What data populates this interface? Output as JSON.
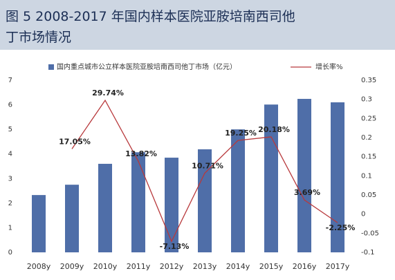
{
  "chart_data": {
    "type": "bar_line",
    "title": "图 5  2008-2017 年国内样本医院亚胺培南西司他丁市场情况",
    "categories": [
      "2008y",
      "2009y",
      "2010y",
      "2011y",
      "2012y",
      "2013y",
      "2014y",
      "2015y",
      "2016y",
      "2017y"
    ],
    "series": [
      {
        "name": "国内重点城市公立样本医院亚胺培南西司他丁市场（亿元）",
        "type": "bar",
        "color": "#4f6ea8",
        "values": [
          2.33,
          2.75,
          3.6,
          4.07,
          3.85,
          4.19,
          5.0,
          6.01,
          6.24,
          6.1
        ]
      },
      {
        "name": "增长率%",
        "type": "line",
        "axis": "y2",
        "color": "#b8393c",
        "values": [
          null,
          0.1705,
          0.2974,
          0.1382,
          -0.0713,
          0.1071,
          0.1925,
          0.2018,
          0.0369,
          -0.0225
        ],
        "value_labels": [
          null,
          "17.05%",
          "29.74%",
          "13.82%",
          "-7.13%",
          "10.71%",
          "19.25%",
          "20.18%",
          "3.69%",
          "-2.25%"
        ]
      }
    ],
    "ylim": [
      0,
      7
    ],
    "yticks": [
      0,
      1,
      2,
      3,
      4,
      5,
      6,
      7
    ],
    "y2lim": [
      -0.1,
      0.35
    ],
    "y2ticks": [
      -0.1,
      -0.05,
      0,
      0.05,
      0.1,
      0.15,
      0.2,
      0.25,
      0.3,
      0.35
    ],
    "grid": false,
    "legend": "top"
  }
}
